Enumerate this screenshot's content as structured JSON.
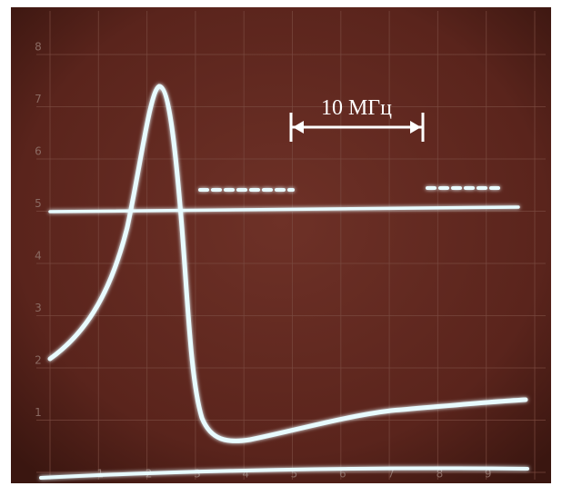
{
  "annotation": "10 МГц",
  "x_labels": [
    "1",
    "2",
    "3",
    "4",
    "5",
    "6",
    "7",
    "8",
    "9"
  ],
  "y_labels": [
    "1",
    "2",
    "3",
    "4",
    "5",
    "6",
    "7",
    "8"
  ]
}
